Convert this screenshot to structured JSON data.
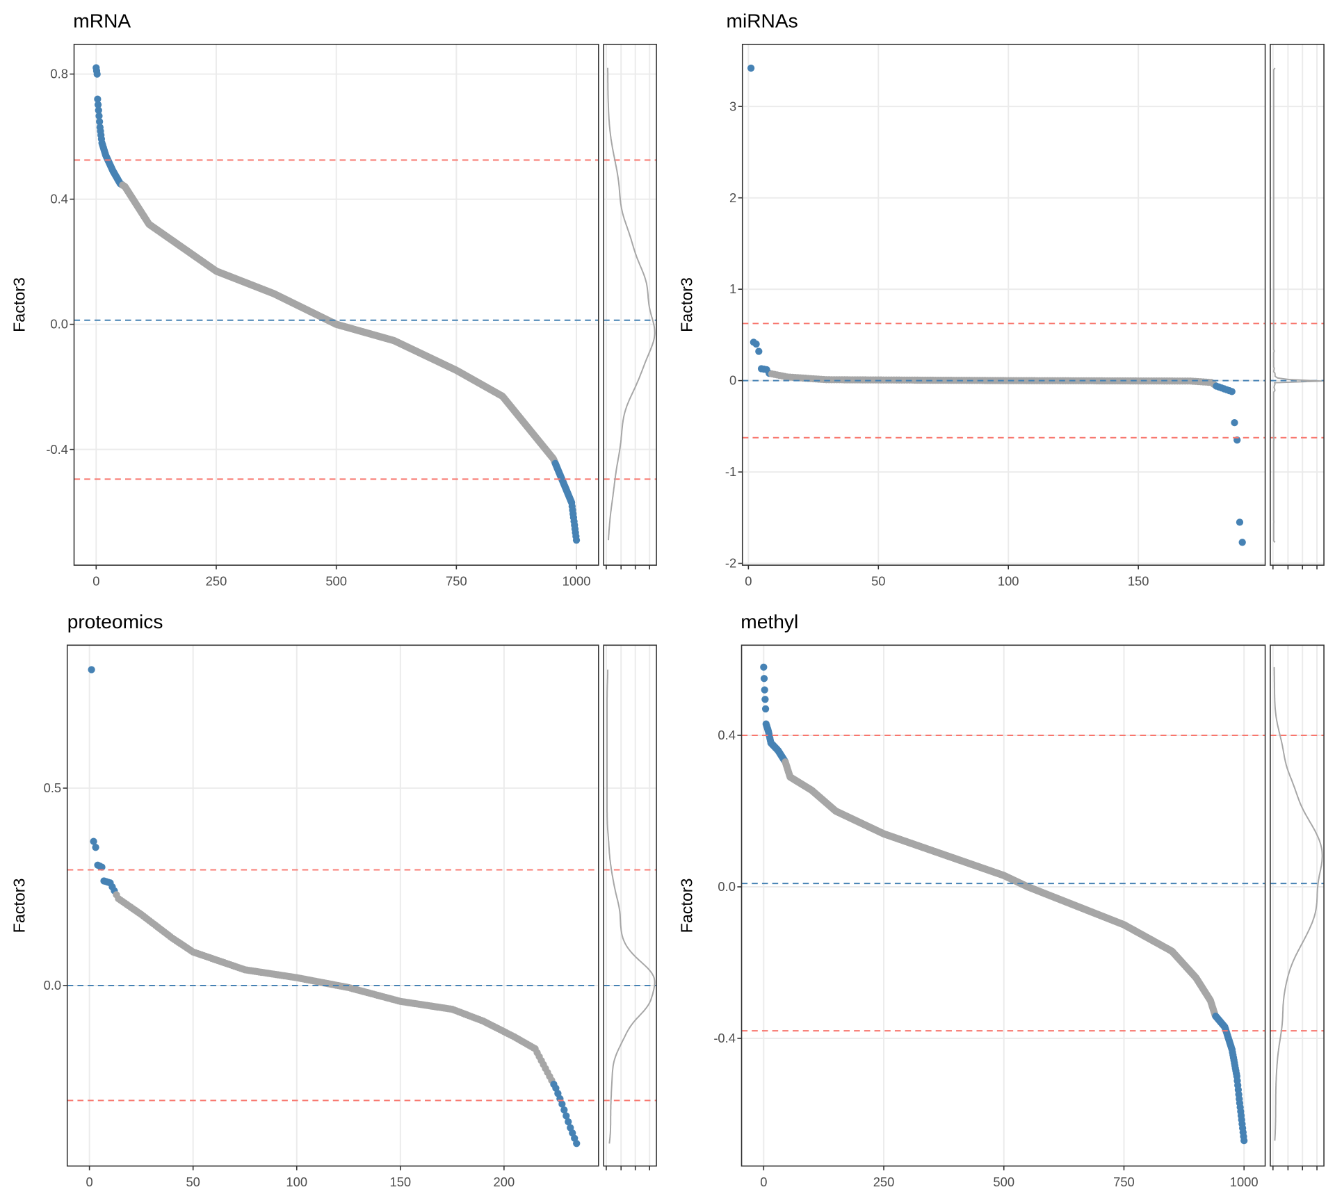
{
  "colors": {
    "highlight": "#4682b4",
    "normal": "#a6a6a6",
    "threshold": "#f8766d",
    "mean": "#4682b4",
    "density": "#a6a6a6",
    "grid": "#ebebeb"
  },
  "chart_data": [
    {
      "type": "scatter",
      "title": "mRNA",
      "xlabel": "",
      "ylabel": "Factor3",
      "n": 1000,
      "xlim": [
        -46,
        1046
      ],
      "ylim": [
        -0.77,
        0.895
      ],
      "xticks": [
        0,
        250,
        500,
        750,
        1000
      ],
      "xtick_labels": [
        "0",
        "250",
        "500",
        "750",
        "1000"
      ],
      "yticks": [
        0.8,
        0.4,
        0.0,
        -0.4
      ],
      "ytick_labels": [
        "0.8",
        "0.4",
        "0.0",
        "-0.4"
      ],
      "curve_knots": [
        [
          0,
          0.82
        ],
        [
          2,
          0.8
        ],
        [
          3,
          0.72
        ],
        [
          8,
          0.63
        ],
        [
          12,
          0.58
        ],
        [
          20,
          0.54
        ],
        [
          35,
          0.49
        ],
        [
          50,
          0.45
        ],
        [
          60,
          0.44
        ],
        [
          110,
          0.32
        ],
        [
          250,
          0.17
        ],
        [
          370,
          0.098
        ],
        [
          500,
          0.0
        ],
        [
          620,
          -0.052
        ],
        [
          750,
          -0.147
        ],
        [
          846,
          -0.23
        ],
        [
          952,
          -0.43
        ],
        [
          990,
          -0.57
        ],
        [
          1000,
          -0.69
        ]
      ],
      "highlight_top_until_rank": 55,
      "highlight_bottom_from_rank": 955,
      "threshold_lines": [
        0.525,
        -0.495
      ],
      "mean_line": 0.013
    },
    {
      "type": "scatter",
      "title": "miRNAs",
      "xlabel": "",
      "ylabel": "Factor3",
      "n": 190,
      "xlim": [
        -2.3,
        198.8
      ],
      "ylim": [
        -2.02,
        3.68
      ],
      "xticks": [
        0,
        50,
        100,
        150
      ],
      "xtick_labels": [
        "0",
        "50",
        "100",
        "150"
      ],
      "yticks": [
        3,
        2,
        1,
        0,
        -1,
        -2
      ],
      "ytick_labels": [
        "3",
        "2",
        "1",
        "0",
        "-1",
        "-2"
      ],
      "curve_knots": [
        [
          1,
          3.42
        ],
        [
          2,
          0.42
        ],
        [
          3,
          0.4
        ],
        [
          4,
          0.32
        ],
        [
          5,
          0.13
        ],
        [
          7,
          0.12
        ],
        [
          8,
          0.08
        ],
        [
          15,
          0.04
        ],
        [
          30,
          0.01
        ],
        [
          100,
          0.0
        ],
        [
          170,
          -0.005
        ],
        [
          178,
          -0.02
        ],
        [
          180,
          -0.06
        ],
        [
          183,
          -0.09
        ],
        [
          186,
          -0.12
        ],
        [
          187,
          -0.46
        ],
        [
          188,
          -0.65
        ],
        [
          189,
          -1.55
        ],
        [
          190,
          -1.77
        ]
      ],
      "highlight_top_until_rank": 8,
      "highlight_bottom_from_rank": 180,
      "threshold_lines": [
        0.625,
        -0.625
      ],
      "mean_line": 0.0
    },
    {
      "type": "scatter",
      "title": "proteomics",
      "xlabel": "",
      "ylabel": "Factor3",
      "n": 235,
      "xlim": [
        -10.7,
        245.6
      ],
      "ylim": [
        -0.457,
        0.862
      ],
      "xticks": [
        0,
        50,
        100,
        150,
        200
      ],
      "xtick_labels": [
        "0",
        "50",
        "100",
        "150",
        "200"
      ],
      "yticks": [
        0.5,
        0.0
      ],
      "ytick_labels": [
        "0.5",
        "0.0"
      ],
      "curve_knots": [
        [
          1,
          0.8
        ],
        [
          2,
          0.365
        ],
        [
          3,
          0.35
        ],
        [
          4,
          0.305
        ],
        [
          6,
          0.3
        ],
        [
          7,
          0.265
        ],
        [
          10,
          0.26
        ],
        [
          12,
          0.24
        ],
        [
          14,
          0.22
        ],
        [
          25,
          0.18
        ],
        [
          40,
          0.12
        ],
        [
          50,
          0.085
        ],
        [
          75,
          0.04
        ],
        [
          100,
          0.02
        ],
        [
          125,
          -0.005
        ],
        [
          150,
          -0.04
        ],
        [
          175,
          -0.06
        ],
        [
          190,
          -0.09
        ],
        [
          205,
          -0.13
        ],
        [
          215,
          -0.16
        ],
        [
          220,
          -0.21
        ],
        [
          225,
          -0.26
        ],
        [
          228,
          -0.3
        ],
        [
          232,
          -0.36
        ],
        [
          235,
          -0.4
        ]
      ],
      "highlight_top_until_rank": 12,
      "highlight_bottom_from_rank": 224,
      "threshold_lines": [
        0.293,
        -0.291
      ],
      "mean_line": 0.0
    },
    {
      "type": "scatter",
      "title": "methyl",
      "xlabel": "",
      "ylabel": "Factor3",
      "n": 1000,
      "xlim": [
        -46,
        1044
      ],
      "ylim": [
        -0.737,
        0.638
      ],
      "xticks": [
        0,
        250,
        500,
        750,
        1000
      ],
      "xtick_labels": [
        "0",
        "250",
        "500",
        "750",
        "1000"
      ],
      "yticks": [
        0.4,
        0.0,
        -0.4
      ],
      "ytick_labels": [
        "0.4",
        "0.0",
        "-0.4"
      ],
      "curve_knots": [
        [
          0,
          0.58
        ],
        [
          2,
          0.52
        ],
        [
          4,
          0.47
        ],
        [
          5,
          0.43
        ],
        [
          10,
          0.41
        ],
        [
          15,
          0.38
        ],
        [
          30,
          0.36
        ],
        [
          45,
          0.33
        ],
        [
          55,
          0.29
        ],
        [
          100,
          0.255
        ],
        [
          150,
          0.2
        ],
        [
          250,
          0.14
        ],
        [
          500,
          0.03
        ],
        [
          550,
          0.0
        ],
        [
          750,
          -0.1
        ],
        [
          850,
          -0.17
        ],
        [
          900,
          -0.24
        ],
        [
          930,
          -0.3
        ],
        [
          940,
          -0.34
        ],
        [
          960,
          -0.37
        ],
        [
          975,
          -0.43
        ],
        [
          985,
          -0.5
        ],
        [
          990,
          -0.56
        ],
        [
          1000,
          -0.67
        ]
      ],
      "highlight_top_until_rank": 45,
      "highlight_bottom_from_rank": 940,
      "threshold_lines": [
        0.4,
        -0.38
      ],
      "mean_line": 0.009
    }
  ]
}
